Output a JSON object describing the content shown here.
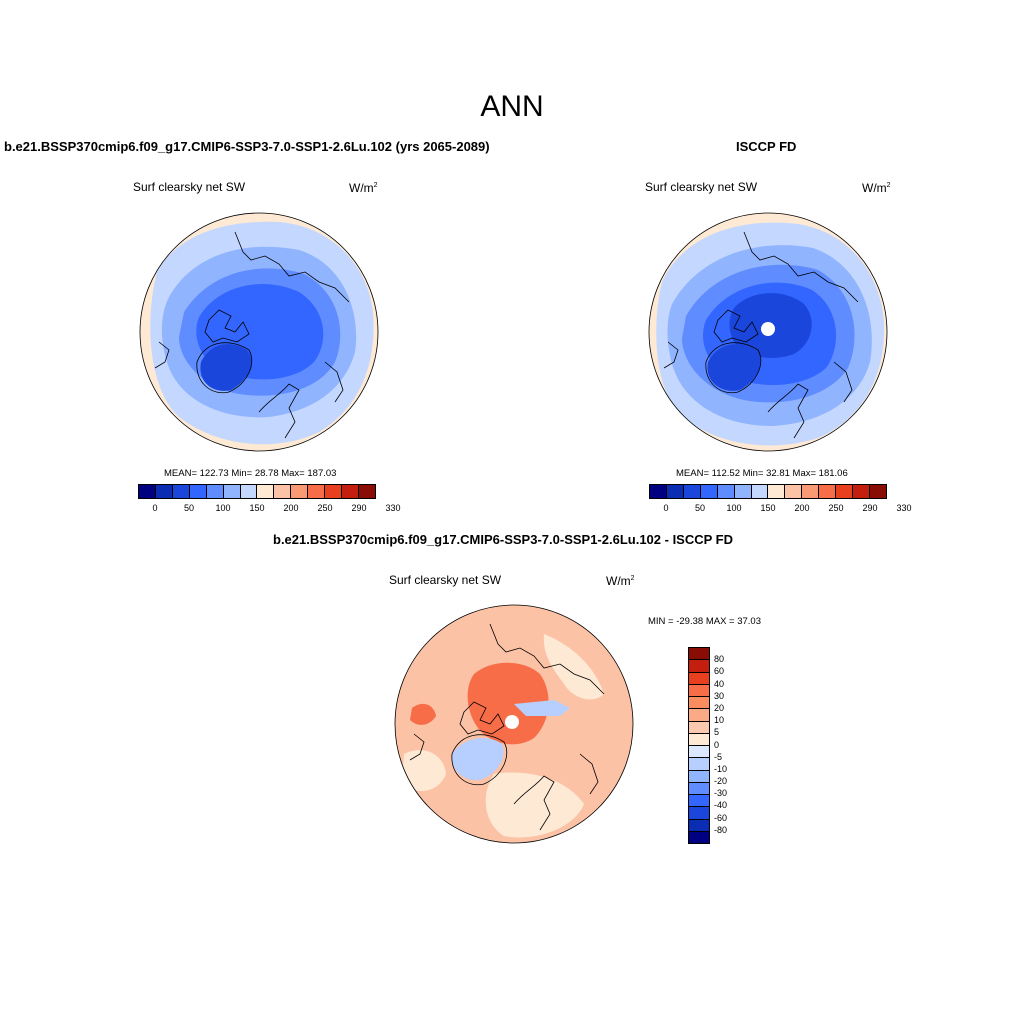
{
  "page": {
    "title": "ANN"
  },
  "panels": [
    {
      "title": "b.e21.BSSP370cmip6.f09_g17.CMIP6-SSP3-7.0-SSP1-2.6Lu.102 (yrs 2065-2089)",
      "variable": "Surf clearsky net SW",
      "units": "W/m",
      "units_exp": "2",
      "stats": "MEAN= 122.73  Min=  28.78  Max= 187.03"
    },
    {
      "title": "ISCCP FD",
      "variable": "Surf clearsky net SW",
      "units": "W/m",
      "units_exp": "2",
      "stats": "MEAN= 112.52  Min=  32.81  Max= 181.06"
    },
    {
      "title": "b.e21.BSSP370cmip6.f09_g17.CMIP6-SSP3-7.0-SSP1-2.6Lu.102 - ISCCP FD",
      "variable": "Surf clearsky net SW",
      "units": "W/m",
      "units_exp": "2",
      "stats": "MIN = -29.38 MAX =  37.03"
    }
  ],
  "colorbars": {
    "abs": {
      "ticks": [
        "0",
        "50",
        "100",
        "150",
        "200",
        "250",
        "290",
        "330"
      ],
      "colors": [
        "#000080",
        "#0a2db4",
        "#1a46dc",
        "#3366ff",
        "#5f8cff",
        "#91b4ff",
        "#c4d8ff",
        "#fde9d4",
        "#fcc2a6",
        "#fa9a74",
        "#f76d47",
        "#e8401f",
        "#c41f0e",
        "#8a0d05"
      ]
    },
    "diff": {
      "ticks": [
        "80",
        "60",
        "40",
        "30",
        "20",
        "10",
        "5",
        "0",
        "-5",
        "-10",
        "-20",
        "-30",
        "-40",
        "-60",
        "-80"
      ],
      "colors": [
        "#8a0d05",
        "#c41f0e",
        "#e8401f",
        "#f76d47",
        "#fa8c60",
        "#fca986",
        "#fdc9ae",
        "#fde9d4",
        "#dbe8ff",
        "#b7cfff",
        "#91b4ff",
        "#5f8cff",
        "#3366ff",
        "#1a46dc",
        "#0a2db4",
        "#000080"
      ]
    }
  },
  "maps": {
    "fill_colors": {
      "outer_ring": "#fde9d4",
      "pale_blue": "#c4d8ff",
      "light_blue": "#91b4ff",
      "mid_blue": "#5f8cff",
      "blue": "#3366ff",
      "deep_blue": "#1a46dc",
      "diff_base": "#fcc2a6",
      "diff_orange": "#f76d47",
      "diff_pale": "#fde9d4",
      "diff_blue": "#b7cfff"
    }
  }
}
